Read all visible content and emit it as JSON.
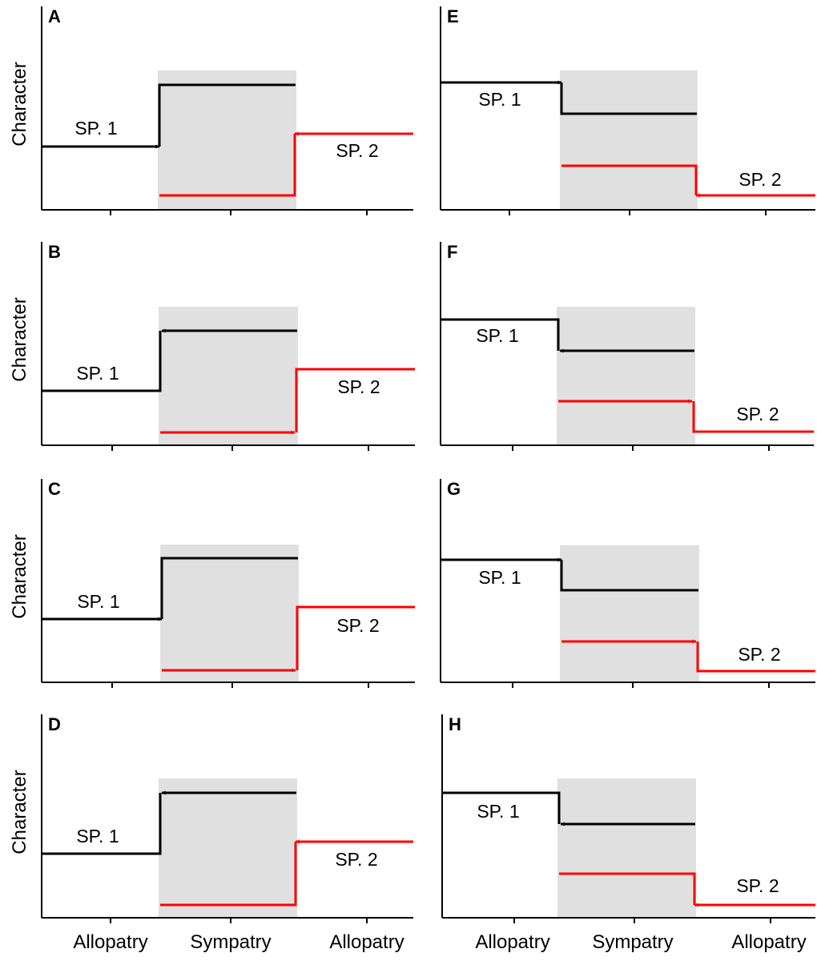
{
  "figure": {
    "y_axis_label": "Character",
    "x_categories": [
      "Allopatry",
      "Sympatry",
      "Allopatry"
    ],
    "colors": {
      "sp1": "#000000",
      "sp2": "#ff0000",
      "sympatry_zone": "#e0e0e0"
    }
  },
  "panels": [
    {
      "id": "A",
      "letter": "A",
      "sp1_label": "SP. 1",
      "sp2_label": "SP. 2",
      "sp1_allopatric": "low",
      "sp1_sympatric": "high",
      "sp1_arrow": "into-sympatry",
      "sp2_allopatric": "high",
      "sp2_sympatric": "low",
      "sp2_arrow": "into-sympatry"
    },
    {
      "id": "B",
      "letter": "B",
      "sp1_label": "SP. 1",
      "sp2_label": "SP. 2",
      "sp1_allopatric": "low",
      "sp1_sympatric": "high",
      "sp1_arrow": "toward-allopatry",
      "sp2_allopatric": "high",
      "sp2_sympatric": "low",
      "sp2_arrow": "toward-allopatry"
    },
    {
      "id": "C",
      "letter": "C",
      "sp1_label": "SP. 1",
      "sp2_label": "SP. 2",
      "sp1_allopatric": "low",
      "sp1_sympatric": "high",
      "sp1_arrow": "into-sympatry",
      "sp2_allopatric": "high",
      "sp2_sympatric": "low",
      "sp2_arrow": "toward-allopatry"
    },
    {
      "id": "D",
      "letter": "D",
      "sp1_label": "SP. 1",
      "sp2_label": "SP. 2",
      "sp1_allopatric": "low",
      "sp1_sympatric": "high",
      "sp1_arrow": "toward-allopatry",
      "sp2_allopatric": "high",
      "sp2_sympatric": "low",
      "sp2_arrow": "into-sympatry"
    },
    {
      "id": "E",
      "letter": "E",
      "sp1_label": "SP. 1",
      "sp2_label": "SP. 2",
      "sp1_allopatric": "high",
      "sp1_sympatric": "lower",
      "sp1_arrow": "into-sympatry",
      "sp2_allopatric": "low",
      "sp2_sympatric": "higher",
      "sp2_arrow": "into-sympatry"
    },
    {
      "id": "F",
      "letter": "F",
      "sp1_label": "SP. 1",
      "sp2_label": "SP. 2",
      "sp1_allopatric": "high",
      "sp1_sympatric": "lower",
      "sp1_arrow": "toward-allopatry",
      "sp2_allopatric": "low",
      "sp2_sympatric": "higher",
      "sp2_arrow": "toward-allopatry"
    },
    {
      "id": "G",
      "letter": "G",
      "sp1_label": "SP. 1",
      "sp2_label": "SP. 2",
      "sp1_allopatric": "high",
      "sp1_sympatric": "lower",
      "sp1_arrow": "into-sympatry",
      "sp2_allopatric": "low",
      "sp2_sympatric": "higher",
      "sp2_arrow": "toward-allopatry"
    },
    {
      "id": "H",
      "letter": "H",
      "sp1_label": "SP. 1",
      "sp2_label": "SP. 2",
      "sp1_allopatric": "high",
      "sp1_sympatric": "lower",
      "sp1_arrow": "toward-allopatry",
      "sp2_allopatric": "low",
      "sp2_sympatric": "higher",
      "sp2_arrow": "into-sympatry"
    }
  ]
}
